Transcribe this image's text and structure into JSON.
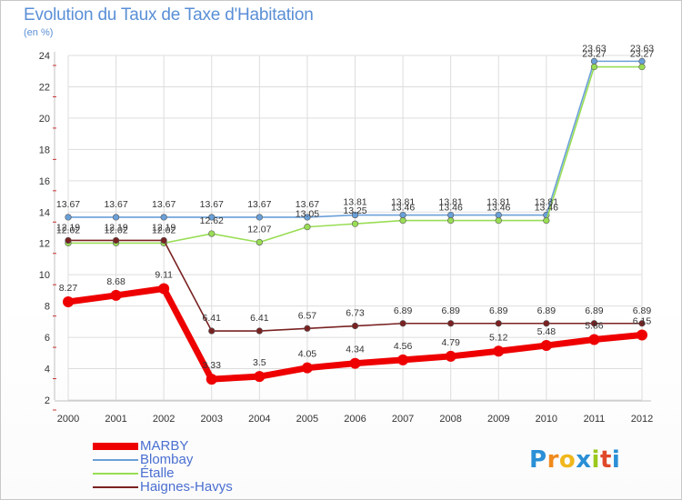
{
  "chart_data": {
    "type": "line",
    "title": "Evolution du Taux de Taxe d'Habitation",
    "unit": "(en %)",
    "x": [
      "2000",
      "2001",
      "2002",
      "2003",
      "2004",
      "2005",
      "2006",
      "2007",
      "2008",
      "2009",
      "2010",
      "2011",
      "2012"
    ],
    "ylim": [
      2,
      24
    ],
    "yticks": [
      2,
      4,
      6,
      8,
      10,
      12,
      14,
      16,
      18,
      20,
      22,
      24
    ],
    "grid": true,
    "legend_position": "bottom-left",
    "series": [
      {
        "name": "MARBY",
        "color": "#ee0000",
        "values": [
          8.27,
          8.68,
          9.11,
          3.33,
          3.5,
          4.05,
          4.34,
          4.56,
          4.79,
          5.12,
          5.48,
          5.86,
          6.15
        ],
        "labels": [
          "8.27",
          "8.68",
          "9.11",
          "3.33",
          "3.5",
          "4.05",
          "4.34",
          "4.56",
          "4.79",
          "5.12",
          "5.48",
          "5.86",
          "6.15"
        ]
      },
      {
        "name": "Blombay",
        "color": "#6aa0d8",
        "values": [
          13.67,
          13.67,
          13.67,
          13.67,
          13.67,
          13.67,
          13.81,
          13.81,
          13.81,
          13.81,
          13.81,
          23.63,
          23.63
        ],
        "labels": [
          "13.67",
          "13.67",
          "13.67",
          "13.67",
          "13.67",
          "13.67",
          "13.81",
          "13.81",
          "13.81",
          "13.81",
          "13.81",
          "23.63",
          "23.63"
        ]
      },
      {
        "name": "Étalle",
        "color": "#99dd55",
        "values": [
          12.02,
          12.02,
          12.02,
          12.62,
          12.07,
          13.05,
          13.25,
          13.46,
          13.46,
          13.46,
          13.46,
          23.27,
          23.27
        ],
        "labels": [
          "12.02",
          "12.02",
          "12.02",
          "12.62",
          "12.07",
          "13.05",
          "13.25",
          "13.46",
          "13.46",
          "13.46",
          "13.46",
          "23.27",
          "23.27"
        ]
      },
      {
        "name": "Haignes-Havys",
        "color": "#7a2222",
        "values": [
          12.19,
          12.19,
          12.19,
          6.41,
          6.41,
          6.57,
          6.73,
          6.89,
          6.89,
          6.89,
          6.89,
          6.89,
          6.89
        ],
        "labels": [
          "12.19",
          "12.19",
          "12.19",
          "6.41",
          "6.41",
          "6.57",
          "6.73",
          "6.89",
          "6.89",
          "6.89",
          "6.89",
          "6.89",
          "6.89"
        ]
      }
    ]
  },
  "logo": {
    "letters": [
      "P",
      "r",
      "o",
      "x",
      "i",
      "t",
      "i"
    ],
    "colors": [
      "#2a8fd6",
      "#f08a1c",
      "#f0b81c",
      "#2a8fd6",
      "#9ac81c",
      "#e0482a",
      "#2a8fd6"
    ]
  }
}
